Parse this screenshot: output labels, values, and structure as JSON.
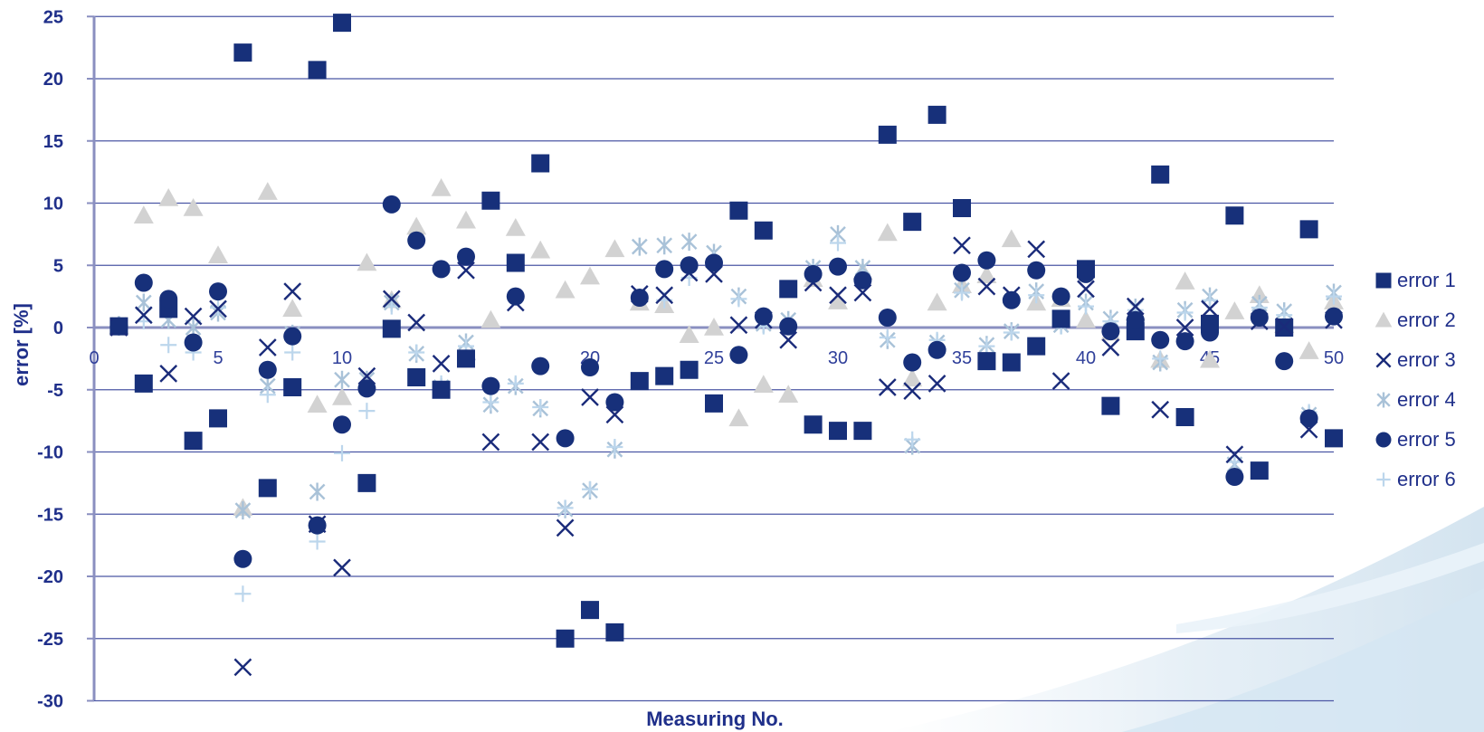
{
  "chart_data": {
    "type": "scatter",
    "title": "",
    "xlabel": "Measuring No.",
    "ylabel": "error [%]",
    "xlim": [
      0,
      50
    ],
    "ylim": [
      -30,
      25
    ],
    "xticks": [
      0,
      5,
      10,
      15,
      20,
      25,
      30,
      35,
      40,
      45,
      50
    ],
    "yticks": [
      25,
      20,
      15,
      10,
      5,
      0,
      -5,
      -10,
      -15,
      -20,
      -25,
      -30
    ],
    "grid": "horizontal",
    "legend_position": "right",
    "x": [
      1,
      2,
      3,
      4,
      5,
      6,
      7,
      8,
      9,
      10,
      11,
      12,
      13,
      14,
      15,
      16,
      17,
      18,
      19,
      20,
      21,
      22,
      23,
      24,
      25,
      26,
      27,
      28,
      29,
      30,
      31,
      32,
      33,
      34,
      35,
      36,
      37,
      38,
      39,
      40,
      41,
      42,
      43,
      44,
      45,
      46,
      47,
      48,
      49,
      50
    ],
    "series": [
      {
        "name": "error 1",
        "marker": "square",
        "color": "#17307a",
        "values": [
          0.1,
          -4.5,
          1.5,
          -9.1,
          -7.3,
          22.1,
          -12.9,
          -4.8,
          20.7,
          24.5,
          -12.5,
          -0.1,
          -4.0,
          -5.0,
          -2.5,
          10.2,
          5.2,
          13.2,
          -25.0,
          -22.7,
          -24.5,
          -4.3,
          -3.9,
          -3.4,
          -6.1,
          9.4,
          7.8,
          3.1,
          -7.8,
          -8.3,
          -8.3,
          15.5,
          8.5,
          17.1,
          9.6,
          -2.7,
          -2.8,
          -1.5,
          0.7,
          4.7,
          -6.3,
          -0.3,
          12.3,
          -7.2,
          0.3,
          9.0,
          -11.5,
          0.0,
          7.9,
          -8.9
        ]
      },
      {
        "name": "error 2",
        "marker": "triangle",
        "color": "#d2d2d2",
        "values": [
          0.1,
          9.0,
          10.4,
          9.6,
          5.8,
          -14.5,
          10.9,
          1.5,
          -6.2,
          -5.6,
          5.2,
          2.2,
          8.1,
          11.2,
          8.6,
          0.6,
          8.0,
          6.2,
          3.0,
          4.1,
          6.3,
          2.0,
          1.8,
          -0.6,
          0.0,
          -7.3,
          -4.6,
          -5.4,
          3.9,
          2.1,
          4.5,
          7.6,
          -4.1,
          2.0,
          3.4,
          4.2,
          7.1,
          2.0,
          2.3,
          0.6,
          -0.4,
          1.2,
          -2.6,
          3.7,
          -2.6,
          1.3,
          2.6,
          0.2,
          -1.9,
          2.1
        ]
      },
      {
        "name": "error 3",
        "marker": "x",
        "color": "#1a2b7a",
        "values": [
          0.0,
          1.0,
          -3.7,
          0.9,
          1.5,
          -27.3,
          -1.6,
          2.9,
          -15.8,
          -19.3,
          -3.9,
          2.3,
          0.4,
          -2.9,
          4.6,
          -9.2,
          2.0,
          -9.2,
          -16.1,
          -5.6,
          -7.0,
          2.7,
          2.6,
          4.4,
          4.3,
          0.2,
          0.6,
          -1.0,
          3.6,
          2.6,
          2.8,
          -4.8,
          -5.1,
          -4.5,
          6.6,
          3.3,
          2.6,
          6.3,
          -4.3,
          3.1,
          -1.6,
          1.7,
          -6.6,
          0.0,
          1.5,
          -10.2,
          0.5,
          0.1,
          -8.2,
          0.6
        ]
      },
      {
        "name": "error 4",
        "marker": "star",
        "color": "#a9c2d8",
        "values": [
          0.2,
          2.0,
          0.6,
          0.0,
          1.2,
          -14.7,
          -4.7,
          -0.5,
          -13.2,
          -4.2,
          -4.2,
          2.0,
          -2.1,
          -4.8,
          -1.2,
          -6.2,
          -4.7,
          -6.5,
          -14.6,
          -13.1,
          -9.8,
          6.5,
          6.6,
          6.9,
          6.0,
          2.5,
          0.3,
          0.6,
          4.8,
          7.5,
          4.8,
          -1.0,
          -9.5,
          -1.2,
          3.0,
          -1.4,
          -0.3,
          2.9,
          0.2,
          2.0,
          0.7,
          1.6,
          -2.8,
          1.4,
          2.5,
          -11.0,
          1.9,
          1.3,
          -7.0,
          2.8
        ]
      },
      {
        "name": "error 5",
        "marker": "circle",
        "color": "#17307a",
        "values": [
          0.1,
          3.6,
          2.3,
          -1.2,
          2.9,
          -18.6,
          -3.4,
          -0.7,
          -15.9,
          -7.8,
          -4.9,
          9.9,
          7.0,
          4.7,
          5.7,
          -4.7,
          2.5,
          -3.1,
          -8.9,
          -3.2,
          -6.0,
          2.4,
          4.7,
          5.0,
          5.2,
          -2.2,
          0.9,
          0.1,
          4.3,
          4.9,
          3.8,
          0.8,
          -2.8,
          -1.8,
          4.4,
          5.4,
          2.2,
          4.6,
          2.5,
          4.3,
          -0.3,
          0.6,
          -1.0,
          -1.1,
          -0.4,
          -12.0,
          0.8,
          -2.7,
          -7.3,
          0.9
        ]
      },
      {
        "name": "error 6",
        "marker": "plus",
        "color": "#bcd6ec",
        "values": [
          0.0,
          0.5,
          -1.4,
          -2.0,
          1.6,
          -21.4,
          -5.4,
          -2.0,
          -17.2,
          -10.1,
          -6.7,
          1.7,
          -2.0,
          -4.5,
          -1.5,
          -6.0,
          -4.5,
          -6.4,
          -14.5,
          -13.0,
          -9.6,
          2.5,
          2.2,
          4.0,
          5.5,
          2.3,
          0.1,
          0.3,
          4.5,
          6.8,
          4.0,
          -0.8,
          -9.0,
          -1.0,
          2.8,
          -1.5,
          -0.4,
          2.6,
          0.1,
          1.7,
          0.5,
          1.4,
          -2.5,
          1.2,
          2.2,
          -10.8,
          1.6,
          1.0,
          -6.8,
          2.5
        ]
      }
    ]
  }
}
